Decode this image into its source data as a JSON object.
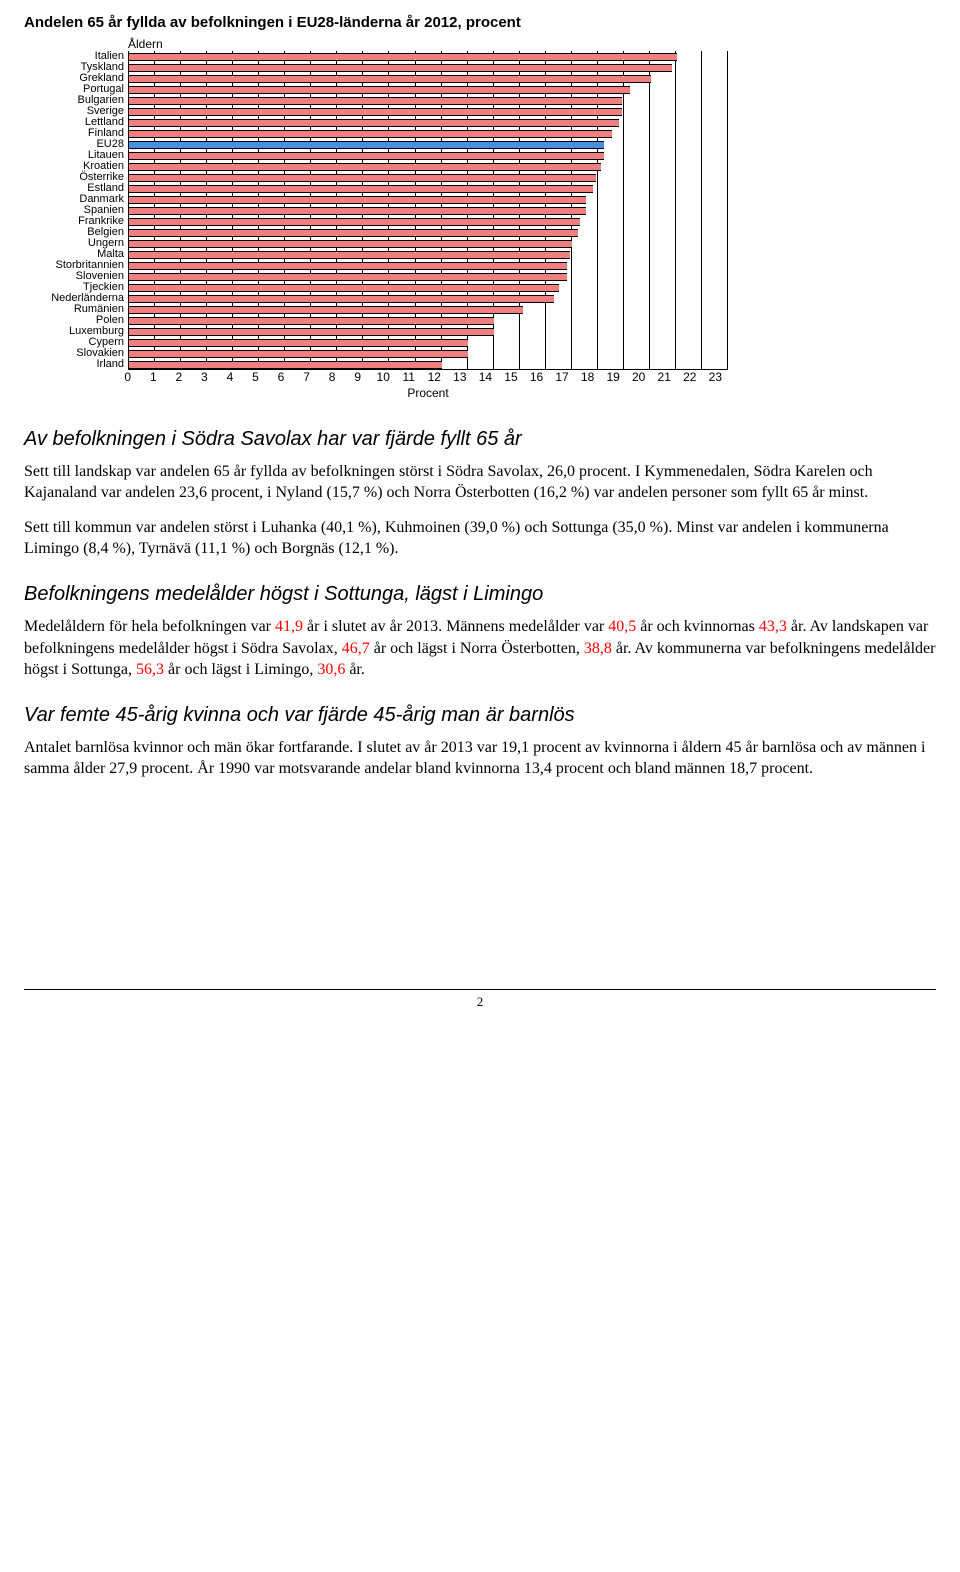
{
  "chart": {
    "title": "Andelen 65 år fyllda av befolkningen i EU28-länderna år 2012, procent",
    "y_axis_title": "Åldern",
    "x_axis_title": "Procent",
    "xmax": 23,
    "xtick_step": 1,
    "bar_color": "#f08080",
    "highlight_color": "#4a90e2",
    "grid_color": "#000000",
    "background_color": "#ffffff",
    "categories": [
      {
        "label": "Italien",
        "value": 21.0
      },
      {
        "label": "Tyskland",
        "value": 20.8
      },
      {
        "label": "Grekland",
        "value": 20.0
      },
      {
        "label": "Portugal",
        "value": 19.2
      },
      {
        "label": "Bulgarien",
        "value": 18.9
      },
      {
        "label": "Sverige",
        "value": 18.9
      },
      {
        "label": "Lettland",
        "value": 18.8
      },
      {
        "label": "Finland",
        "value": 18.5
      },
      {
        "label": "EU28",
        "value": 18.2,
        "highlight": true
      },
      {
        "label": "Litauen",
        "value": 18.2
      },
      {
        "label": "Kroatien",
        "value": 18.1
      },
      {
        "label": "Österrike",
        "value": 17.9
      },
      {
        "label": "Estland",
        "value": 17.8
      },
      {
        "label": "Danmark",
        "value": 17.5
      },
      {
        "label": "Spanien",
        "value": 17.5
      },
      {
        "label": "Frankrike",
        "value": 17.3
      },
      {
        "label": "Belgien",
        "value": 17.2
      },
      {
        "label": "Ungern",
        "value": 17.0
      },
      {
        "label": "Malta",
        "value": 16.9
      },
      {
        "label": "Storbritannien",
        "value": 16.8
      },
      {
        "label": "Slovenien",
        "value": 16.8
      },
      {
        "label": "Tjeckien",
        "value": 16.5
      },
      {
        "label": "Nederländerna",
        "value": 16.3
      },
      {
        "label": "Rumänien",
        "value": 15.1
      },
      {
        "label": "Polen",
        "value": 14.0
      },
      {
        "label": "Luxemburg",
        "value": 14.0
      },
      {
        "label": "Cypern",
        "value": 13.0
      },
      {
        "label": "Slovakien",
        "value": 13.0
      },
      {
        "label": "Irland",
        "value": 12.0
      }
    ]
  },
  "headings": {
    "h1": "Av befolkningen i Södra Savolax har var fjärde fyllt 65 år",
    "h2": "Befolkningens medelålder högst i Sottunga, lägst i Limingo",
    "h3": "Var femte 45-årig kvinna och var fjärde 45-årig man är barnlös"
  },
  "paragraphs": {
    "p1": "Sett till landskap var andelen 65 år fyllda av befolkningen störst i Södra Savolax, 26,0 procent. I Kymmenedalen, Södra Karelen och Kajanaland var andelen 23,6 procent, i Nyland (15,7 %) och Norra Österbotten (16,2 %) var andelen personer som fyllt 65 år minst.",
    "p2": "Sett till kommun var andelen störst i Luhanka (40,1 %), Kuhmoinen (39,0 %) och Sottunga (35,0 %). Minst var andelen i kommunerna Limingo (8,4 %), Tyrnävä (11,1 %) och Borgnäs (12,1 %).",
    "p3_parts": {
      "a": "Medelåldern för hela befolkningen var ",
      "v1": "41,9",
      "b": " år i slutet av år 2013. Männens medelålder var ",
      "v2": "40,5",
      "c": " år och kvinnornas ",
      "v3": "43,3",
      "d": " år. Av landskapen var befolkningens medelålder högst i Södra Savolax, ",
      "v4": "46,7",
      "e": " år och lägst i Norra Österbotten, ",
      "v5": "38,8",
      "f": " år. Av kommunerna var befolkningens medelålder högst i Sottunga, ",
      "v6": "56,3",
      "g": " år och lägst i Limingo, ",
      "v7": "30,6",
      "h": " år."
    },
    "p4": "Antalet barnlösa kvinnor och män ökar fortfarande. I slutet av år 2013 var 19,1 procent av kvinnorna i åldern 45 år barnlösa och av männen i samma ålder 27,9 procent. År 1990 var motsvarande andelar bland kvinnorna 13,4 procent och bland männen 18,7 procent."
  },
  "page_number": "2"
}
